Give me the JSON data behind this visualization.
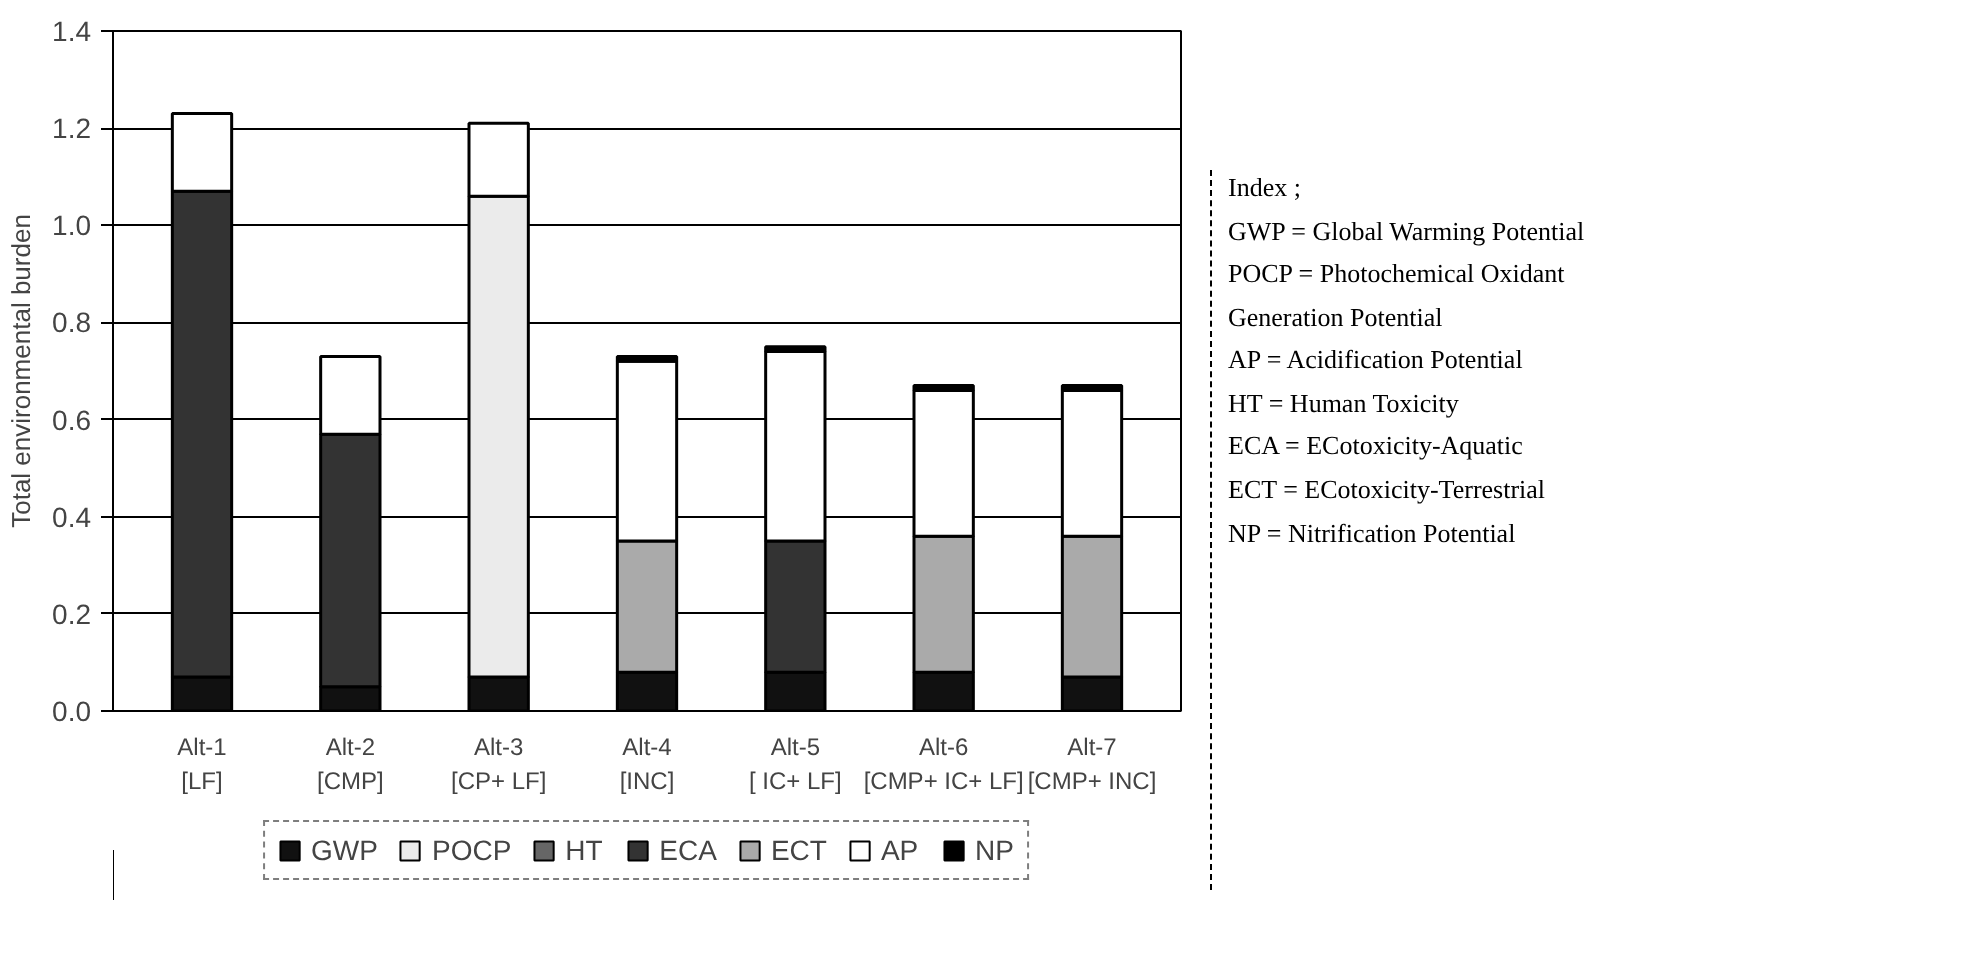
{
  "chart_data": {
    "type": "bar",
    "stacked": true,
    "ylabel": "Total environmental burden",
    "categories": [
      "Alt-1\n[LF]",
      "Alt-2\n[CMP]",
      "Alt-3\n[CP+ LF]",
      "Alt-4\n[INC]",
      "Alt-5\n[ IC+ LF]",
      "Alt-6\n[CMP+ IC+ LF]",
      "Alt-7\n[CMP+ INC]"
    ],
    "series": [
      {
        "name": "GWP",
        "color": "#111111",
        "values": [
          0.07,
          0.05,
          0.07,
          0.08,
          0.08,
          0.08,
          0.07
        ]
      },
      {
        "name": "POCP",
        "color": "#ebebeb",
        "values": [
          0,
          0,
          0.99,
          0,
          0,
          0,
          0
        ]
      },
      {
        "name": "HT",
        "color": "#666666",
        "values": [
          0,
          0,
          0,
          0,
          0,
          0,
          0
        ]
      },
      {
        "name": "ECA",
        "color": "#333333",
        "values": [
          1.0,
          0.52,
          0,
          0,
          0.27,
          0,
          0
        ]
      },
      {
        "name": "ECT",
        "color": "#aaaaaa",
        "values": [
          0,
          0,
          0,
          0.27,
          0,
          0.28,
          0.29
        ]
      },
      {
        "name": "AP",
        "color": "#ffffff",
        "values": [
          0.16,
          0.16,
          0.15,
          0.37,
          0.39,
          0.3,
          0.3
        ]
      },
      {
        "name": "NP",
        "color": "#000000",
        "values": [
          0,
          0,
          0,
          0.01,
          0.01,
          0.01,
          0.01
        ]
      }
    ],
    "ylim": [
      0,
      1.4
    ],
    "yticks": [
      {
        "value": 0,
        "label": "0.0"
      },
      {
        "value": 0.2,
        "label": "0.2"
      },
      {
        "value": 0.4,
        "label": "0.4"
      },
      {
        "value": 0.6,
        "label": "0.6"
      },
      {
        "value": 0.8,
        "label": "0.8"
      },
      {
        "value": 1.0,
        "label": "1.0"
      },
      {
        "value": 1.2,
        "label": "1.2"
      },
      {
        "value": 1.4,
        "label": "1.4"
      }
    ],
    "grid": "y",
    "legend": "bottom",
    "annotations": [
      "Index ;",
      "GWP = Global Warming Potential",
      "POCP = Photochemical Oxidant",
      "Generation Potential",
      "AP = Acidification Potential",
      "HT = Human Toxicity",
      "ECA = ECotoxicity-Aquatic",
      "ECT = ECotoxicity-Terrestrial",
      "NP = Nitrification Potential"
    ]
  }
}
